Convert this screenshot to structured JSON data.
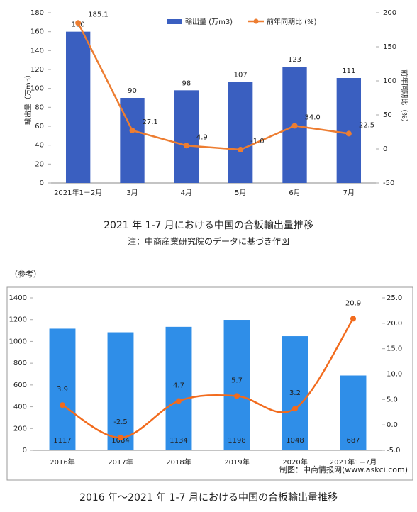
{
  "chart_data": [
    {
      "type": "combo",
      "caption": "2021 年 1-7 月における中国の合板輸出量推移",
      "note": "注：中商産業研究院のデータに基づき作図",
      "ylabel": "輸出量（万m3）",
      "y2label": "前年同期比（%）",
      "categories": [
        "2021年1－2月",
        "3月",
        "4月",
        "5月",
        "6月",
        "7月"
      ],
      "series": [
        {
          "name": "輸出量 (万m3)",
          "type": "bar",
          "color": "#3a5fc0",
          "values": [
            160,
            90,
            98,
            107,
            123,
            111
          ]
        },
        {
          "name": "前年同期比 (%)",
          "type": "line",
          "axis": "y2",
          "color": "#ed7d31",
          "smooth": false,
          "values": [
            185.1,
            27.1,
            4.9,
            -1.0,
            34.0,
            22.5
          ],
          "value_labels": [
            "185.1",
            "27.1",
            "4.9",
            "-1.0",
            "34.0",
            "22.5"
          ]
        }
      ],
      "ylim": [
        0,
        180
      ],
      "yticks": [
        0,
        20,
        40,
        60,
        80,
        100,
        120,
        140,
        160,
        180
      ],
      "y2lim": [
        -50,
        200
      ],
      "y2ticks": [
        -50,
        0,
        50,
        100,
        150,
        200
      ],
      "legend": "top",
      "grid": false
    },
    {
      "type": "combo",
      "label": "（参考）",
      "caption": "2016 年～2021 年 1-7 月における中国の合板輸出量推移",
      "source": "制图：中商情报网(www.askci.com)",
      "categories": [
        "2016年",
        "2017年",
        "2018年",
        "2019年",
        "2020年",
        "2021年1−7月"
      ],
      "series": [
        {
          "type": "bar",
          "color": "#2f8ee8",
          "values": [
            1117,
            1084,
            1134,
            1198,
            1048,
            687
          ]
        },
        {
          "type": "line",
          "axis": "y2",
          "color": "#f26b1d",
          "smooth": true,
          "values": [
            3.9,
            -2.5,
            4.7,
            5.7,
            3.2,
            20.9
          ]
        }
      ],
      "ylim": [
        0,
        1400
      ],
      "yticks": [
        0,
        200,
        400,
        600,
        800,
        1000,
        1200,
        1400
      ],
      "y2lim": [
        -5,
        25
      ],
      "y2ticks": [
        {
          "value": -5,
          "label": "-5.0"
        },
        {
          "value": 0,
          "label": "0.0"
        },
        {
          "value": 5,
          "label": "5.0"
        },
        {
          "value": 10,
          "label": "10.0"
        },
        {
          "value": 15,
          "label": "15.0"
        },
        {
          "value": 20,
          "label": "20.0"
        },
        {
          "value": 25,
          "label": "25.0"
        }
      ],
      "legend": "none",
      "grid": false
    }
  ]
}
